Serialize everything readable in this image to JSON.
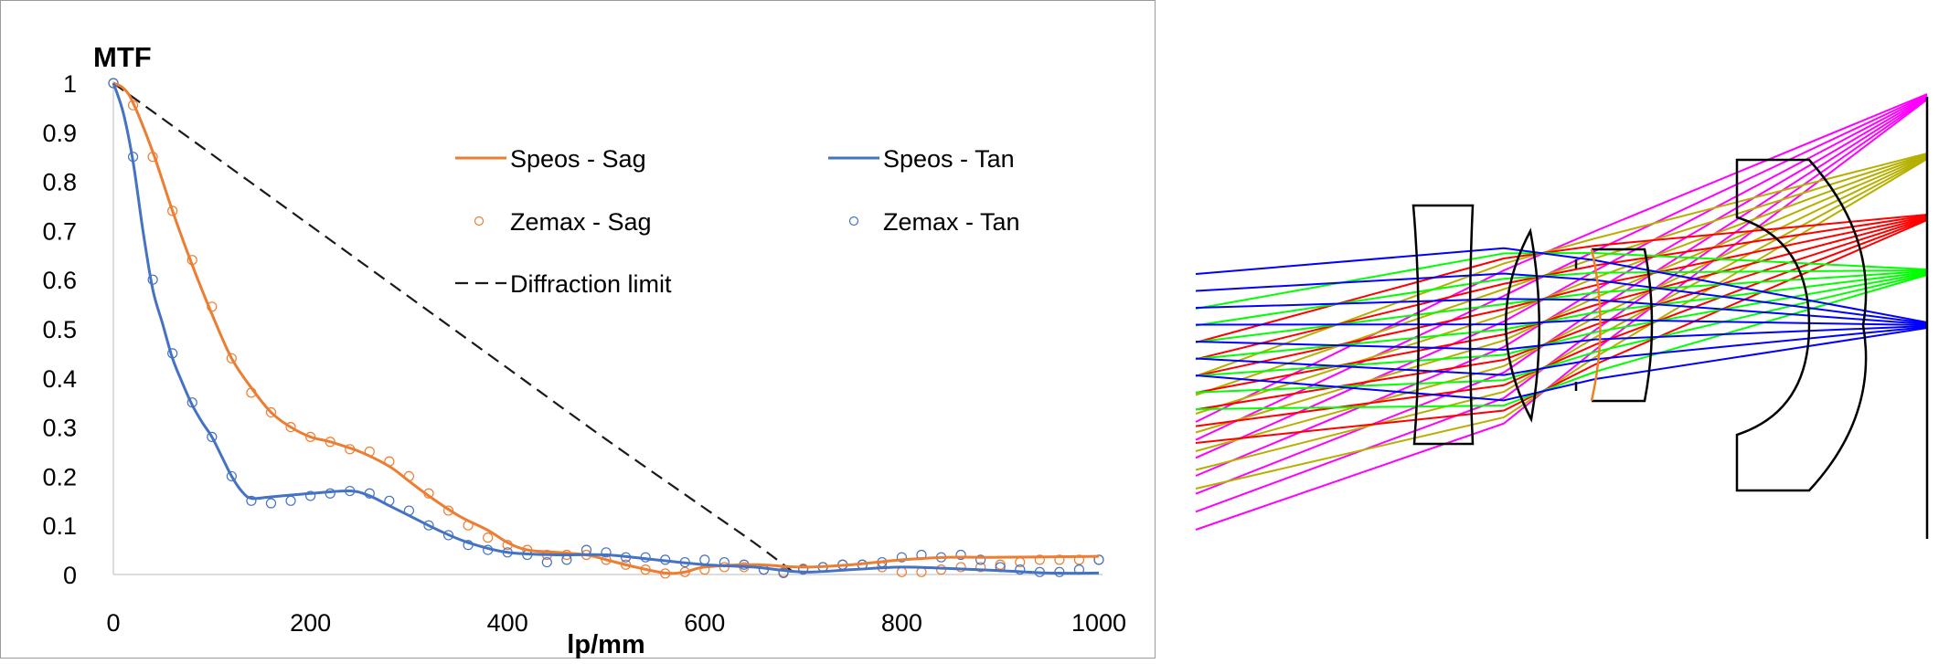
{
  "chart_data": {
    "type": "line",
    "ylabel": "MTF",
    "xlabel": "lp/mm",
    "xlim": [
      0,
      1000
    ],
    "ylim": [
      0,
      1
    ],
    "x_ticks": [
      "0",
      "200",
      "400",
      "600",
      "800",
      "1000"
    ],
    "y_ticks": [
      "0",
      "0.1",
      "0.2",
      "0.3",
      "0.4",
      "0.5",
      "0.6",
      "0.7",
      "0.8",
      "0.9",
      "1"
    ],
    "grid": false,
    "legend_placement": "top-right, inside plot, two columns",
    "series": [
      {
        "name": "Speos - Sag",
        "style": "line",
        "color": "#ed7d31",
        "x": [
          0,
          10,
          20,
          40,
          60,
          80,
          100,
          120,
          140,
          160,
          180,
          200,
          220,
          250,
          280,
          300,
          320,
          350,
          380,
          400,
          420,
          450,
          480,
          500,
          530,
          560,
          580,
          600,
          650,
          700,
          750,
          800,
          850,
          900,
          1000
        ],
        "y": [
          1,
          0.99,
          0.96,
          0.86,
          0.74,
          0.63,
          0.53,
          0.44,
          0.38,
          0.33,
          0.3,
          0.28,
          0.27,
          0.25,
          0.22,
          0.19,
          0.16,
          0.12,
          0.09,
          0.065,
          0.05,
          0.045,
          0.04,
          0.03,
          0.015,
          0.003,
          0.005,
          0.015,
          0.02,
          0.015,
          0.02,
          0.03,
          0.035,
          0.035,
          0.037
        ]
      },
      {
        "name": "Speos - Tan",
        "style": "line",
        "color": "#4472c4",
        "x": [
          0,
          10,
          20,
          30,
          40,
          50,
          60,
          70,
          80,
          90,
          100,
          110,
          120,
          130,
          140,
          160,
          200,
          240,
          260,
          280,
          300,
          330,
          360,
          400,
          450,
          500,
          550,
          600,
          650,
          700,
          750,
          800,
          850,
          900,
          950,
          1000
        ],
        "y": [
          1,
          0.94,
          0.84,
          0.7,
          0.58,
          0.51,
          0.44,
          0.39,
          0.345,
          0.31,
          0.28,
          0.24,
          0.2,
          0.17,
          0.155,
          0.158,
          0.165,
          0.17,
          0.16,
          0.14,
          0.12,
          0.09,
          0.065,
          0.045,
          0.04,
          0.04,
          0.03,
          0.02,
          0.015,
          0.005,
          0.01,
          0.015,
          0.012,
          0.008,
          0.003,
          0.003
        ]
      },
      {
        "name": "Zemax - Sag",
        "style": "markers",
        "color": "#ed7d31",
        "x": [
          0,
          20,
          40,
          60,
          80,
          100,
          120,
          140,
          160,
          180,
          200,
          220,
          240,
          260,
          280,
          300,
          320,
          340,
          360,
          380,
          400,
          420,
          440,
          460,
          480,
          500,
          520,
          540,
          560,
          580,
          600,
          620,
          640,
          660,
          680,
          700,
          720,
          740,
          760,
          780,
          800,
          820,
          840,
          860,
          880,
          900,
          920,
          940,
          960,
          980,
          1000
        ],
        "y": [
          1,
          0.955,
          0.85,
          0.74,
          0.64,
          0.545,
          0.44,
          0.37,
          0.33,
          0.3,
          0.28,
          0.27,
          0.255,
          0.25,
          0.23,
          0.2,
          0.165,
          0.13,
          0.1,
          0.075,
          0.06,
          0.05,
          0.04,
          0.04,
          0.04,
          0.03,
          0.02,
          0.01,
          0.002,
          0.005,
          0.01,
          0.015,
          0.015,
          0.01,
          0.005,
          0.012,
          0.015,
          0.02,
          0.02,
          0.015,
          0.005,
          0.005,
          0.01,
          0.015,
          0.015,
          0.02,
          0.025,
          0.03,
          0.03,
          0.03,
          0.03
        ]
      },
      {
        "name": "Zemax - Tan",
        "style": "markers",
        "color": "#4472c4",
        "x": [
          0,
          20,
          40,
          60,
          80,
          100,
          120,
          140,
          160,
          180,
          200,
          220,
          240,
          260,
          280,
          300,
          320,
          340,
          360,
          380,
          400,
          420,
          440,
          460,
          480,
          500,
          520,
          540,
          560,
          580,
          600,
          620,
          640,
          660,
          680,
          700,
          720,
          740,
          760,
          780,
          800,
          820,
          840,
          860,
          880,
          900,
          920,
          940,
          960,
          980,
          1000
        ],
        "y": [
          1,
          0.85,
          0.6,
          0.45,
          0.35,
          0.28,
          0.2,
          0.15,
          0.145,
          0.15,
          0.16,
          0.165,
          0.17,
          0.165,
          0.15,
          0.13,
          0.1,
          0.08,
          0.06,
          0.05,
          0.045,
          0.04,
          0.025,
          0.03,
          0.05,
          0.045,
          0.035,
          0.035,
          0.03,
          0.025,
          0.03,
          0.025,
          0.02,
          0.01,
          0.003,
          0.01,
          0.015,
          0.02,
          0.02,
          0.025,
          0.035,
          0.04,
          0.035,
          0.04,
          0.03,
          0.015,
          0.01,
          0.005,
          0.005,
          0.01,
          0.03
        ]
      },
      {
        "name": "Diffraction limit",
        "style": "dashed",
        "color": "#1a1a1a",
        "x": [
          0,
          100,
          200,
          300,
          400,
          500,
          600,
          650,
          690
        ],
        "y": [
          1,
          0.855,
          0.71,
          0.565,
          0.42,
          0.275,
          0.135,
          0.065,
          0.005
        ]
      }
    ]
  },
  "diagram": {
    "ray_colors": {
      "blue": "#0000ff",
      "green": "#00ff00",
      "red": "#ff0000",
      "yellow": "#b5b000",
      "magenta": "#ff00ff"
    },
    "lens_color": "#000000",
    "stop_surface_color": "#f08020"
  }
}
